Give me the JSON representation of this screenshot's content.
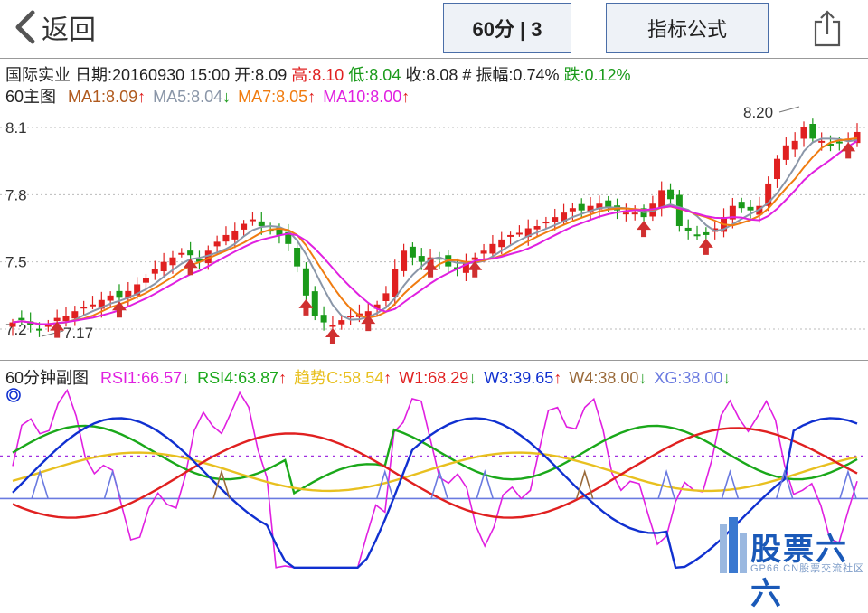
{
  "nav": {
    "back_label": "返回",
    "period_label": "60分 | 3",
    "formula_label": "指标公式"
  },
  "info": {
    "stock_name": "国际实业",
    "date": "日期:20160930 15:00",
    "open": "开:8.09",
    "high": "高:8.10",
    "low": "低:8.04",
    "close": "收:8.08",
    "amp": "# 振幅:0.74%",
    "change": "跌:0.12%"
  },
  "main_chart": {
    "title": "60主图",
    "ma_legend": [
      {
        "label": "MA1:8.09",
        "arrow": "↑",
        "color": "#b05a1e"
      },
      {
        "label": "MA5:8.04",
        "arrow": "↓",
        "color": "#8a96a8"
      },
      {
        "label": "MA7:8.05",
        "arrow": "↑",
        "color": "#f07c10"
      },
      {
        "label": "MA10:8.00",
        "arrow": "↑",
        "color": "#e020e0"
      }
    ],
    "y_ticks": [
      "8.1",
      "7.8",
      "7.5",
      "7.2"
    ],
    "max_label": "8.20",
    "min_label": "7.17"
  },
  "sub_chart": {
    "title": "60分钟副图",
    "legend": [
      {
        "label": "RSI1:66.57",
        "arrow": "↓",
        "color": "#e020e0"
      },
      {
        "label": "RSI4:63.87",
        "arrow": "↑",
        "color": "#1aa81a"
      },
      {
        "label": "趋势C:58.54",
        "arrow": "↑",
        "color": "#e8c020"
      },
      {
        "label": "W1:68.29",
        "arrow": "↓",
        "color": "#e02020"
      },
      {
        "label": "W3:39.65",
        "arrow": "↑",
        "color": "#1030d0"
      },
      {
        "label": "W4:38.00",
        "arrow": "↓",
        "color": "#9a6a3a"
      },
      {
        "label": "XG:38.00",
        "arrow": "↓",
        "color": "#6a7ae0"
      }
    ]
  },
  "watermark": {
    "brand": "股票六六",
    "site": "GP66.CN股票交流社区"
  },
  "colors": {
    "up": "#e02020",
    "down": "#1a9a1a",
    "ma5": "#8a96a8",
    "ma7": "#f07c10",
    "ma10": "#e020e0"
  }
}
